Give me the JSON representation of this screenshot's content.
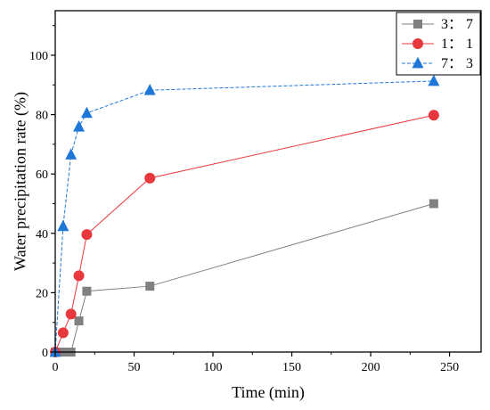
{
  "chart_data": {
    "type": "line",
    "xlabel": "Time (min)",
    "ylabel": "Water precipitation rate (%)",
    "xlim": [
      0,
      270
    ],
    "ylim": [
      0,
      115
    ],
    "xticks": [
      "0",
      "50",
      "100",
      "150",
      "200",
      "250"
    ],
    "xtick_values": [
      0,
      50,
      100,
      150,
      200,
      250
    ],
    "yticks": [
      "0",
      "20",
      "40",
      "60",
      "80",
      "100"
    ],
    "ytick_values": [
      0,
      20,
      40,
      60,
      80,
      100
    ],
    "grid": false,
    "legend_position": "top-right",
    "series": [
      {
        "name": "3： 7",
        "color": "#808080",
        "marker": "square",
        "x": [
          0,
          5,
          10,
          15,
          20,
          60,
          240
        ],
        "y": [
          0,
          0,
          0,
          10.5,
          20.5,
          22.2,
          50
        ]
      },
      {
        "name": "1： 1",
        "color": "#e8383d",
        "marker": "circle",
        "x": [
          0,
          5,
          10,
          15,
          20,
          60,
          240
        ],
        "y": [
          0,
          6.5,
          12.8,
          25.7,
          39.6,
          58.6,
          79.8
        ]
      },
      {
        "name": "7： 3",
        "color": "#1f78d8",
        "marker": "triangle",
        "x": [
          0,
          5,
          10,
          15,
          20,
          60,
          240
        ],
        "y": [
          0,
          42.4,
          66.5,
          75.9,
          80.5,
          88.2,
          91.3
        ]
      }
    ]
  }
}
